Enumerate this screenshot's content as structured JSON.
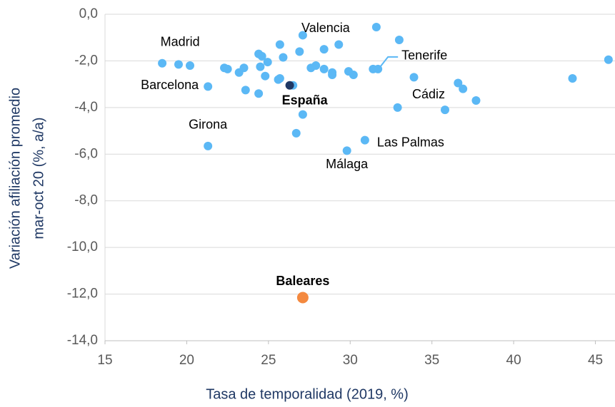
{
  "chart_data": {
    "type": "scatter",
    "xlabel": "Tasa de temporalidad (2019, %)",
    "ylabel": [
      "Variación afiliación promedio",
      "mar-oct 20  (%, a/a)"
    ],
    "xlim": [
      15,
      46.2
    ],
    "xticks": [
      15,
      20,
      25,
      30,
      35,
      40,
      45
    ],
    "ylim": [
      -14,
      0
    ],
    "yticks": [
      {
        "value": -14,
        "label": "-14,0"
      },
      {
        "value": -12,
        "label": "-12,0"
      },
      {
        "value": -10,
        "label": "-10,0"
      },
      {
        "value": -8,
        "label": "-8,0"
      },
      {
        "value": -6,
        "label": "-6,0"
      },
      {
        "value": -4,
        "label": "-4,0"
      },
      {
        "value": -2,
        "label": "-2,0"
      },
      {
        "value": 0,
        "label": "0,0"
      }
    ],
    "grid": true,
    "series": [
      {
        "color": "#5bb8f5",
        "x": [
          18.5,
          19.5,
          20.2,
          21.3,
          21.3,
          22.3,
          22.5,
          23.2,
          23.5,
          23.6,
          24.4,
          24.6,
          24.5,
          24.95,
          24.8,
          24.4,
          25.7,
          25.9,
          25.6,
          25.7,
          26.5,
          26.9,
          27.1,
          27.1,
          26.7,
          27.6,
          27.9,
          28.4,
          28.4,
          29.3,
          28.9,
          28.9,
          29.9,
          30.2,
          29.8,
          30.9,
          31.6,
          31.4,
          31.7,
          33.0,
          32.9,
          33.9,
          35.8,
          36.6,
          36.9,
          37.7,
          43.6,
          45.8
        ],
        "values": [
          -2.1,
          -2.15,
          -2.2,
          -3.1,
          -5.65,
          -2.3,
          -2.35,
          -2.5,
          -2.3,
          -3.25,
          -1.7,
          -1.8,
          -2.25,
          -2.05,
          -2.65,
          -3.4,
          -1.3,
          -1.85,
          -2.8,
          -2.75,
          -3.05,
          -1.6,
          -0.9,
          -4.3,
          -5.1,
          -2.3,
          -2.2,
          -2.35,
          -1.5,
          -1.3,
          -2.5,
          -2.6,
          -2.45,
          -2.6,
          -5.85,
          -5.4,
          -0.55,
          -2.35,
          -2.35,
          -1.1,
          -4.0,
          -2.7,
          -4.1,
          -2.95,
          -3.2,
          -3.7,
          -2.75,
          -1.95
        ],
        "labels": [
          "Madrid",
          null,
          null,
          "Barcelona",
          "Girona",
          null,
          null,
          null,
          null,
          null,
          null,
          null,
          null,
          null,
          null,
          null,
          null,
          null,
          null,
          null,
          null,
          null,
          "Valencia",
          null,
          null,
          null,
          null,
          null,
          null,
          null,
          null,
          null,
          null,
          null,
          "Málaga",
          "Las Palmas",
          null,
          null,
          "Tenerife",
          null,
          null,
          null,
          "Cádiz",
          null,
          null,
          null,
          null,
          null
        ]
      },
      {
        "color": "#1f3864",
        "x": [
          26.3
        ],
        "values": [
          -3.05
        ],
        "labels": [
          "España"
        ],
        "label_weight": "bold"
      },
      {
        "color": "#f4893f",
        "x": [
          27.1
        ],
        "values": [
          -12.15
        ],
        "labels": [
          "Baleares"
        ],
        "label_weight": "bold"
      }
    ]
  }
}
